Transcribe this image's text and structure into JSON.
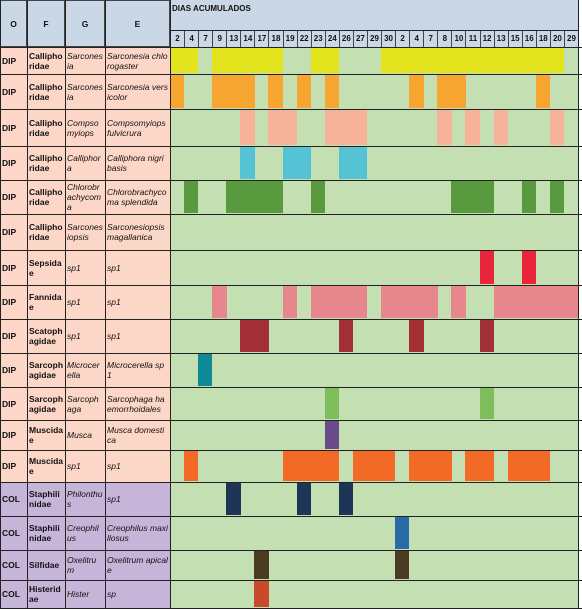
{
  "header": {
    "columns": [
      "O",
      "F",
      "G",
      "E"
    ],
    "group": "DIAS ACUMULADOS",
    "days": [
      2,
      4,
      7,
      9,
      13,
      14,
      17,
      18,
      19,
      22,
      23,
      24,
      26,
      27,
      29,
      30,
      2,
      4,
      7,
      8,
      10,
      11,
      12,
      13,
      15,
      16,
      18,
      20,
      29
    ]
  },
  "rows": [
    {
      "order": "DIP",
      "family": "Calliphoridae",
      "genus": "Sarconesia",
      "species": "Sarconesia chlorogaster",
      "color": "#e4e41e",
      "presence": [
        1,
        1,
        0,
        1,
        1,
        1,
        1,
        1,
        0,
        0,
        1,
        1,
        0,
        0,
        0,
        1,
        1,
        1,
        1,
        1,
        1,
        1,
        1,
        1,
        1,
        1,
        1,
        1,
        0
      ]
    },
    {
      "order": "DIP",
      "family": "Calliphoridae",
      "genus": "Sarconesia",
      "species": "Sarconesia versicolor",
      "color": "#f7a531",
      "presence": [
        1,
        0,
        0,
        1,
        1,
        1,
        0,
        1,
        0,
        1,
        0,
        1,
        0,
        0,
        0,
        0,
        0,
        1,
        0,
        1,
        1,
        0,
        0,
        0,
        0,
        0,
        1,
        0,
        0
      ]
    },
    {
      "order": "DIP",
      "family": "Calliphoridae",
      "genus": "Compsomyiops",
      "species": "Compsomyiops fulvicrura",
      "color": "#f6b39a",
      "presence": [
        0,
        0,
        0,
        0,
        0,
        1,
        0,
        1,
        1,
        0,
        0,
        1,
        1,
        1,
        0,
        0,
        0,
        0,
        0,
        1,
        0,
        1,
        0,
        1,
        0,
        0,
        0,
        1,
        0
      ]
    },
    {
      "order": "DIP",
      "family": "Calliphoridae",
      "genus": "Calliphora",
      "species": "Calliphora nigribasis",
      "color": "#56c3d4",
      "presence": [
        0,
        0,
        0,
        0,
        0,
        1,
        0,
        0,
        1,
        1,
        0,
        0,
        1,
        1,
        0,
        0,
        0,
        0,
        0,
        0,
        0,
        0,
        0,
        0,
        0,
        0,
        0,
        0,
        0
      ]
    },
    {
      "order": "DIP",
      "family": "Calliphoridae",
      "genus": "Chlorobrachycoma",
      "species": "Chlorobrachycoma splendida",
      "color": "#5a9a3e",
      "presence": [
        0,
        1,
        0,
        0,
        1,
        1,
        1,
        1,
        0,
        0,
        1,
        0,
        0,
        0,
        0,
        0,
        0,
        0,
        0,
        0,
        1,
        1,
        1,
        0,
        0,
        1,
        0,
        1,
        0
      ]
    },
    {
      "order": "DIP",
      "family": "Calliphoridae",
      "genus": "Sarconesiopsis",
      "species": "Sarconesiopsis magallanica",
      "color": "#5a9a3e",
      "presence": [
        0,
        0,
        0,
        0,
        0,
        0,
        0,
        0,
        0,
        0,
        0,
        0,
        0,
        0,
        0,
        0,
        0,
        0,
        0,
        0,
        0,
        0,
        0,
        0,
        0,
        0,
        0,
        0,
        0
      ]
    },
    {
      "order": "DIP",
      "family": "Sepsidae",
      "genus": "sp1",
      "species": "sp1",
      "color": "#e8253a",
      "presence": [
        0,
        0,
        0,
        0,
        0,
        0,
        0,
        0,
        0,
        0,
        0,
        0,
        0,
        0,
        0,
        0,
        0,
        0,
        0,
        0,
        0,
        0,
        1,
        0,
        0,
        1,
        0,
        0,
        0
      ]
    },
    {
      "order": "DIP",
      "family": "Fannidae",
      "genus": "sp1",
      "species": "sp1",
      "color": "#e8868e",
      "presence": [
        0,
        0,
        0,
        1,
        0,
        0,
        0,
        0,
        1,
        0,
        1,
        1,
        1,
        1,
        0,
        1,
        1,
        1,
        1,
        0,
        1,
        0,
        0,
        1,
        1,
        1,
        1,
        1,
        1
      ]
    },
    {
      "order": "DIP",
      "family": "Scatophagidae",
      "genus": "sp1",
      "species": "sp1",
      "color": "#a33036",
      "presence": [
        0,
        0,
        0,
        0,
        0,
        1,
        1,
        0,
        0,
        0,
        0,
        0,
        1,
        0,
        0,
        0,
        0,
        1,
        0,
        0,
        0,
        0,
        1,
        0,
        0,
        0,
        0,
        0,
        0
      ]
    },
    {
      "order": "DIP",
      "family": "Sarcophagidae",
      "genus": "Microcerella",
      "species": "Microcerella sp1",
      "color": "#0e8a96",
      "presence": [
        0,
        0,
        1,
        0,
        0,
        0,
        0,
        0,
        0,
        0,
        0,
        0,
        0,
        0,
        0,
        0,
        0,
        0,
        0,
        0,
        0,
        0,
        0,
        0,
        0,
        0,
        0,
        0,
        0
      ]
    },
    {
      "order": "DIP",
      "family": "Sarcophagidae",
      "genus": "Sarcophaga",
      "species": "Sarcophaga haemorrhoidales",
      "color": "#7ebd5a",
      "presence": [
        0,
        0,
        0,
        0,
        0,
        0,
        0,
        0,
        0,
        0,
        0,
        1,
        0,
        0,
        0,
        0,
        0,
        0,
        0,
        0,
        0,
        0,
        1,
        0,
        0,
        0,
        0,
        0,
        0
      ]
    },
    {
      "order": "DIP",
      "family": "Muscidae",
      "genus": "Musca",
      "species": "Musca domestica",
      "color": "#6a4a8a",
      "presence": [
        0,
        0,
        0,
        0,
        0,
        0,
        0,
        0,
        0,
        0,
        0,
        1,
        0,
        0,
        0,
        0,
        0,
        0,
        0,
        0,
        0,
        0,
        0,
        0,
        0,
        0,
        0,
        0,
        0
      ]
    },
    {
      "order": "DIP",
      "family": "Muscidae",
      "genus": "sp1",
      "species": "sp1",
      "color": "#f26a25",
      "presence": [
        0,
        1,
        0,
        0,
        0,
        0,
        0,
        0,
        1,
        1,
        1,
        1,
        0,
        1,
        1,
        1,
        0,
        1,
        1,
        1,
        0,
        1,
        1,
        0,
        1,
        1,
        1,
        0,
        0
      ]
    },
    {
      "order": "COL",
      "family": "Staphilinidae",
      "genus": "Philonthus",
      "species": "sp1",
      "color": "#1f3558",
      "presence": [
        0,
        0,
        0,
        0,
        1,
        0,
        0,
        0,
        0,
        1,
        0,
        0,
        1,
        0,
        0,
        0,
        0,
        0,
        0,
        0,
        0,
        0,
        0,
        0,
        0,
        0,
        0,
        0,
        0
      ]
    },
    {
      "order": "COL",
      "family": "Staphilinidae",
      "genus": "Creophilus",
      "species": "Creophilus maxillosus",
      "color": "#2a6aa8",
      "presence": [
        0,
        0,
        0,
        0,
        0,
        0,
        0,
        0,
        0,
        0,
        0,
        0,
        0,
        0,
        0,
        0,
        1,
        0,
        0,
        0,
        0,
        0,
        0,
        0,
        0,
        0,
        0,
        0,
        0
      ]
    },
    {
      "order": "COL",
      "family": "Silfidae",
      "genus": "Oxelitrum",
      "species": "Oxelitrum apicale",
      "color": "#4a3a22",
      "presence": [
        0,
        0,
        0,
        0,
        0,
        0,
        1,
        0,
        0,
        0,
        0,
        0,
        0,
        0,
        0,
        0,
        1,
        0,
        0,
        0,
        0,
        0,
        0,
        0,
        0,
        0,
        0,
        0,
        0
      ]
    },
    {
      "order": "COL",
      "family": "Histeridae",
      "genus": "Hister",
      "species": "sp",
      "color": "#c94a2a",
      "presence": [
        0,
        0,
        0,
        0,
        0,
        0,
        1,
        0,
        0,
        0,
        0,
        0,
        0,
        0,
        0,
        0,
        0,
        0,
        0,
        0,
        0,
        0,
        0,
        0,
        0,
        0,
        0,
        0,
        0
      ]
    }
  ]
}
